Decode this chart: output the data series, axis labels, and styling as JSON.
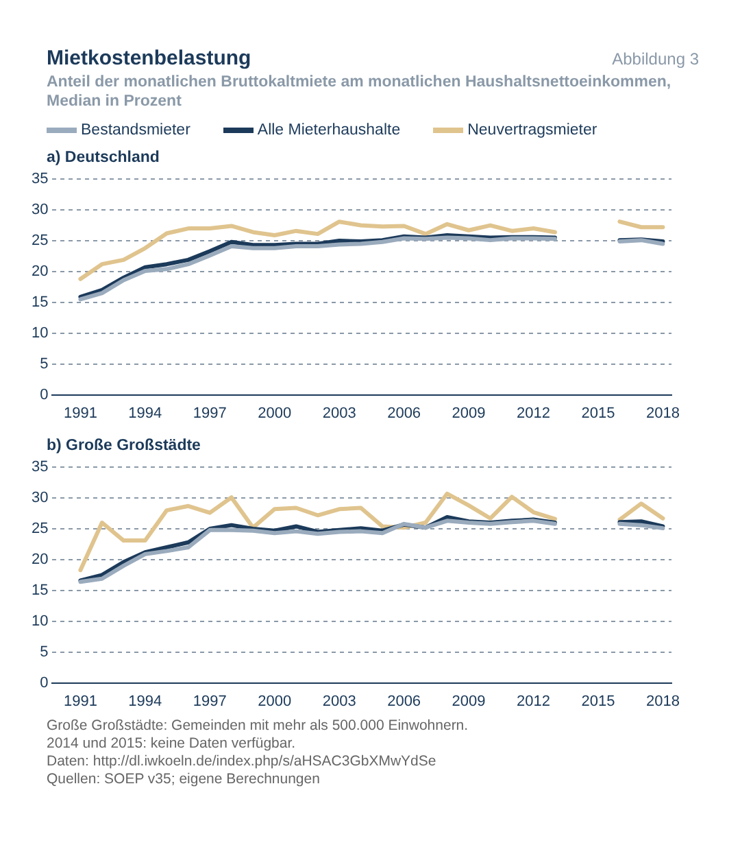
{
  "chart_data": [
    {
      "type": "line",
      "title": "Mietkostenbelastung",
      "subtitle": "Anteil der monatlichen Bruttokaltmiete am monatlichen Haushaltsnettoeinkommen, Median in Prozent",
      "annotations": [
        "Abbildung 3",
        "a) Deutschland"
      ],
      "x": [
        1991,
        1992,
        1993,
        1994,
        1995,
        1996,
        1997,
        1998,
        1999,
        2000,
        2001,
        2002,
        2003,
        2004,
        2005,
        2006,
        2007,
        2008,
        2009,
        2010,
        2011,
        2012,
        2013,
        2014,
        2015,
        2016,
        2017,
        2018
      ],
      "series": [
        {
          "name": "Bestandsmieter",
          "color": "#9aabbd",
          "values": [
            15.5,
            16.5,
            18.6,
            20.1,
            20.4,
            21.2,
            22.6,
            24.1,
            23.8,
            23.8,
            24.1,
            24.1,
            24.4,
            24.5,
            24.8,
            25.4,
            25.3,
            25.5,
            25.4,
            25.1,
            25.4,
            25.4,
            25.3,
            null,
            null,
            24.9,
            25.1,
            24.5
          ]
        },
        {
          "name": "Alle Mieterhaushalte",
          "color": "#1c3a5a",
          "values": [
            15.9,
            17.0,
            19.0,
            20.7,
            21.2,
            21.9,
            23.3,
            24.8,
            24.3,
            24.3,
            24.5,
            24.5,
            25.0,
            24.9,
            25.1,
            25.7,
            25.5,
            25.9,
            25.7,
            25.5,
            25.6,
            25.6,
            25.5,
            null,
            null,
            25.1,
            25.2,
            24.9
          ]
        },
        {
          "name": "Neuvertragsmieter",
          "color": "#e0c48e",
          "values": [
            18.8,
            21.2,
            21.9,
            23.8,
            26.2,
            27.0,
            27.0,
            27.4,
            26.4,
            25.9,
            26.6,
            26.1,
            28.1,
            27.5,
            27.3,
            27.4,
            26.1,
            27.7,
            26.7,
            27.5,
            26.6,
            27.0,
            26.4,
            null,
            null,
            28.1,
            27.2,
            27.2
          ]
        }
      ],
      "xlim": [
        1989.7,
        2018.4
      ],
      "xticks": [
        1991,
        1994,
        1997,
        2000,
        2003,
        2006,
        2009,
        2012,
        2015,
        2018
      ],
      "ylim": [
        0,
        35
      ],
      "yticks": [
        0,
        5,
        10,
        15,
        20,
        25,
        30,
        35
      ],
      "grid": "y",
      "legend": "top",
      "marker": "none",
      "line_style": "solid"
    },
    {
      "type": "line",
      "title": "b) Große Großstädte",
      "annotations": [
        "Große Großstädte: Gemeinden mit mehr als 500.000 Einwohnern.",
        "2014 und 2015: keine Daten verfügbar.",
        "Daten: http://dl.iwkoeln.de/index.php/s/aHSAC3GbXMwYdSe",
        "Quellen: SOEP v35; eigene Berechnungen"
      ],
      "x": [
        1991,
        1992,
        1993,
        1994,
        1995,
        1996,
        1997,
        1998,
        1999,
        2000,
        2001,
        2002,
        2003,
        2004,
        2005,
        2006,
        2007,
        2008,
        2009,
        2010,
        2011,
        2012,
        2013,
        2014,
        2015,
        2016,
        2017,
        2018
      ],
      "series": [
        {
          "color": "#9aabbd",
          "values": [
            16.4,
            16.9,
            19.0,
            20.9,
            21.4,
            22.0,
            24.8,
            24.8,
            24.7,
            24.3,
            24.6,
            24.2,
            24.5,
            24.6,
            24.3,
            25.8,
            25.2,
            26.3,
            26.0,
            25.8,
            26.1,
            26.3,
            25.8,
            null,
            null,
            25.8,
            25.6,
            25.1
          ]
        },
        {
          "color": "#1c3a5a",
          "values": [
            16.6,
            17.5,
            19.6,
            21.2,
            22.0,
            22.8,
            25.0,
            25.6,
            25.0,
            24.7,
            25.4,
            24.5,
            24.8,
            25.1,
            24.7,
            25.7,
            25.2,
            26.9,
            26.2,
            26.0,
            26.3,
            26.5,
            26.0,
            null,
            null,
            26.1,
            26.2,
            25.4
          ]
        },
        {
          "color": "#e0c48e",
          "values": [
            18.3,
            26.0,
            23.1,
            23.1,
            28.0,
            28.7,
            27.6,
            30.1,
            25.2,
            28.2,
            28.4,
            27.2,
            28.2,
            28.4,
            25.4,
            25.2,
            26.0,
            30.7,
            28.8,
            26.7,
            30.2,
            27.7,
            26.6,
            null,
            null,
            26.5,
            29.1,
            26.7
          ]
        }
      ],
      "xlim": [
        1989.7,
        2018.4
      ],
      "xticks": [
        1991,
        1994,
        1997,
        2000,
        2003,
        2006,
        2009,
        2012,
        2015,
        2018
      ],
      "ylim": [
        0,
        35
      ],
      "yticks": [
        0,
        5,
        10,
        15,
        20,
        25,
        30,
        35
      ],
      "grid": "y",
      "marker": "none",
      "line_style": "solid"
    }
  ]
}
